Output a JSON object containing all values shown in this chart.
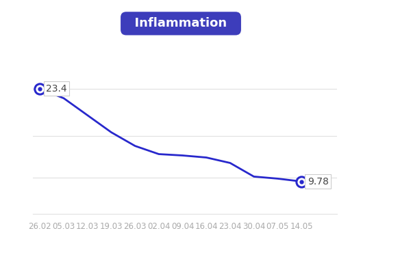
{
  "x_labels": [
    "26.02",
    "05.03",
    "12.03",
    "19.03",
    "26.03",
    "02.04",
    "09.04",
    "16.04",
    "23.04",
    "30.04",
    "07.05",
    "14.05"
  ],
  "x_values": [
    0,
    1,
    2,
    3,
    4,
    5,
    6,
    7,
    8,
    9,
    10,
    11
  ],
  "y_values": [
    23.4,
    22.0,
    19.5,
    17.0,
    15.0,
    13.8,
    13.6,
    13.3,
    12.5,
    10.5,
    10.2,
    9.78
  ],
  "start_value": "23.4",
  "end_value": "9.78",
  "line_color": "#2828cc",
  "marker_color": "#2828cc",
  "marker_face": "#ffffff",
  "background_color": "#ffffff",
  "title": "Inflammation",
  "title_bg_color": "#3d3dbb",
  "title_text_color": "#ffffff",
  "title_fontsize": 13,
  "tick_fontsize": 8.5,
  "tick_color": "#aaaaaa",
  "grid_color": "#e0e0e0",
  "annotation_box_color": "#ffffff",
  "annotation_fontsize": 10,
  "ylim_min": 5,
  "ylim_max": 28,
  "xlim_min": -0.3,
  "xlim_max": 12.5
}
